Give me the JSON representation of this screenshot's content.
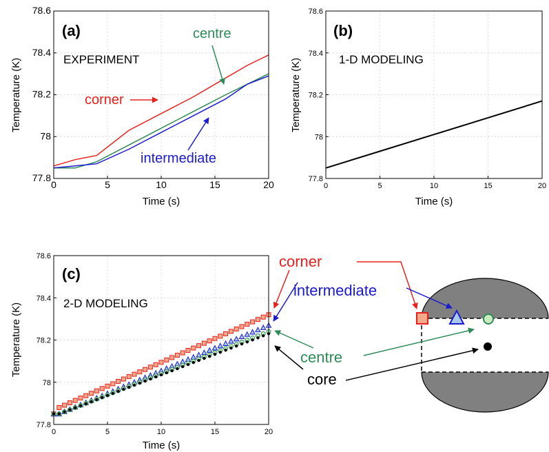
{
  "colors": {
    "corner": "#e8201e",
    "intermediate": "#1a1ad0",
    "centre": "#2e8b57",
    "core": "#000000",
    "corner_fill": "#f4a98a",
    "triangle_fill": "#a8c8ec",
    "circle_fill": "#c8ecc0",
    "shade": "#808080"
  },
  "chart_data": [
    {
      "type": "line",
      "panel_label": "(a)",
      "annotation": "EXPERIMENT",
      "xlabel": "Time (s)",
      "ylabel": "Temperature (K)",
      "xlim": [
        0,
        20
      ],
      "ylim": [
        77.8,
        78.6
      ],
      "x_ticks": [
        "0",
        "5",
        "10",
        "15",
        "20"
      ],
      "y_ticks": [
        "77.8",
        "78",
        "78.2",
        "78.4",
        "78.6"
      ],
      "grid": true,
      "series": [
        {
          "name": "corner",
          "color_key": "corner",
          "x": [
            0,
            2,
            4,
            7,
            10,
            13,
            16,
            18,
            20
          ],
          "y": [
            77.86,
            77.89,
            77.91,
            78.03,
            78.11,
            78.19,
            78.28,
            78.34,
            78.39
          ]
        },
        {
          "name": "centre",
          "color_key": "centre",
          "x": [
            0,
            1,
            2,
            4,
            7,
            10,
            13,
            16,
            18,
            20
          ],
          "y": [
            77.85,
            77.85,
            77.85,
            77.88,
            77.96,
            78.04,
            78.12,
            78.2,
            78.25,
            78.3
          ]
        },
        {
          "name": "intermediate",
          "color_key": "intermediate",
          "x": [
            0,
            2,
            4,
            7,
            10,
            13,
            16,
            18,
            20
          ],
          "y": [
            77.85,
            77.86,
            77.87,
            77.94,
            78.02,
            78.1,
            78.18,
            78.25,
            78.29
          ]
        }
      ],
      "labels": [
        {
          "text": "corner",
          "color_key": "corner"
        },
        {
          "text": "centre",
          "color_key": "centre"
        },
        {
          "text": "intermediate",
          "color_key": "intermediate"
        }
      ]
    },
    {
      "type": "line",
      "panel_label": "(b)",
      "annotation": "1-D MODELING",
      "xlabel": "Time (s)",
      "ylabel": "Temperature (K)",
      "xlim": [
        0,
        20
      ],
      "ylim": [
        77.8,
        78.6
      ],
      "x_ticks": [
        "0",
        "5",
        "10",
        "15",
        "20"
      ],
      "y_ticks": [
        "77.8",
        "78",
        "78.2",
        "78.4",
        "78.6"
      ],
      "grid": true,
      "series": [
        {
          "color_key": "core",
          "x": [
            0,
            5,
            10,
            15,
            20
          ],
          "y": [
            77.85,
            77.93,
            78.01,
            78.09,
            78.17
          ]
        }
      ]
    },
    {
      "type": "scatter",
      "panel_label": "(c)",
      "annotation": "2-D MODELING",
      "xlabel": "Time (s)",
      "ylabel": "Temperature (K)",
      "xlim": [
        0,
        20
      ],
      "ylim": [
        77.8,
        78.6
      ],
      "x_ticks": [
        "0",
        "5",
        "10",
        "15",
        "20"
      ],
      "y_ticks": [
        "77.8",
        "78",
        "78.2",
        "78.4",
        "78.6"
      ],
      "grid": true,
      "marker_step": 0.5,
      "series": [
        {
          "name": "corner",
          "marker": "square",
          "color_key": "corner",
          "fill_key": "corner_fill",
          "y_start": 77.85,
          "y_first": 77.88,
          "y_end": 78.32
        },
        {
          "name": "intermediate",
          "marker": "triangle",
          "color_key": "intermediate",
          "fill_key": "triangle_fill",
          "y_start": 77.85,
          "y_first": 77.85,
          "y_end": 78.27
        },
        {
          "name": "centre",
          "marker": "circle",
          "color_key": "centre",
          "fill_key": "circle_fill",
          "y_start": 77.85,
          "y_first": 77.85,
          "y_end": 78.24
        },
        {
          "name": "core",
          "marker": "dot",
          "color_key": "core",
          "fill_key": "core",
          "y_start": 77.85,
          "y_first": 77.85,
          "y_end": 78.23
        }
      ],
      "labels": [
        {
          "text": "corner",
          "color_key": "corner"
        },
        {
          "text": "intermediate",
          "color_key": "intermediate"
        },
        {
          "text": "centre",
          "color_key": "centre"
        },
        {
          "text": "core",
          "color_key": "core"
        }
      ]
    }
  ]
}
